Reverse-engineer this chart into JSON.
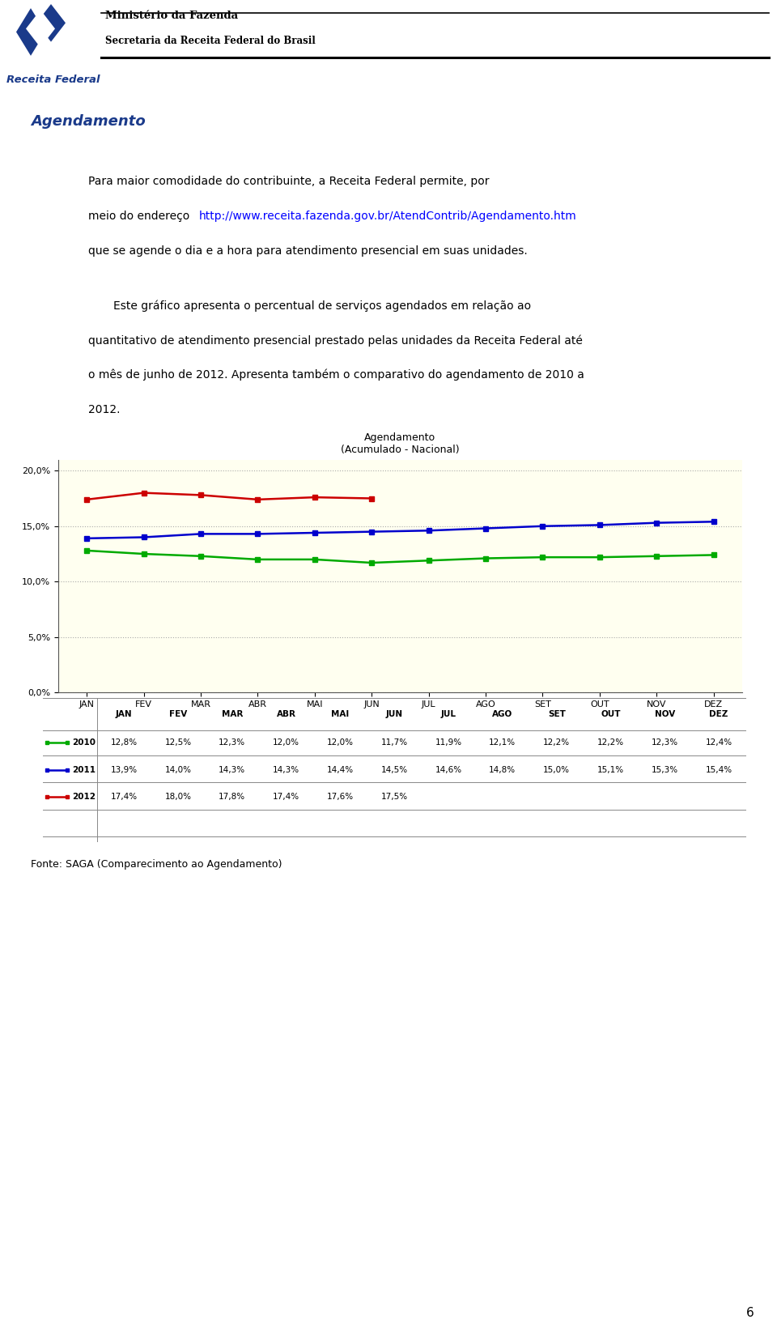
{
  "title_line1": "Agendamento",
  "title_line2": "(Acumulado - Nacional)",
  "months": [
    "JAN",
    "FEV",
    "MAR",
    "ABR",
    "MAI",
    "JUN",
    "JUL",
    "AGO",
    "SET",
    "OUT",
    "NOV",
    "DEZ"
  ],
  "data_2010": [
    12.8,
    12.5,
    12.3,
    12.0,
    12.0,
    11.7,
    11.9,
    12.1,
    12.2,
    12.2,
    12.3,
    12.4
  ],
  "data_2011": [
    13.9,
    14.0,
    14.3,
    14.3,
    14.4,
    14.5,
    14.6,
    14.8,
    15.0,
    15.1,
    15.3,
    15.4
  ],
  "data_2012": [
    17.4,
    18.0,
    17.8,
    17.4,
    17.6,
    17.5,
    null,
    null,
    null,
    null,
    null,
    null
  ],
  "color_2010": "#00aa00",
  "color_2011": "#0000cc",
  "color_2012": "#cc0000",
  "yticks": [
    0.0,
    5.0,
    10.0,
    15.0,
    20.0
  ],
  "ytick_labels": [
    "0,0%",
    "5,0%",
    "10,0%",
    "15,0%",
    "20,0%"
  ],
  "chart_bg": "#fffff0",
  "outer_bg": "#ffffff",
  "table_2010_labels": [
    "12,8%",
    "12,5%",
    "12,3%",
    "12,0%",
    "12,0%",
    "11,7%",
    "11,9%",
    "12,1%",
    "12,2%",
    "12,2%",
    "12,3%",
    "12,4%"
  ],
  "table_2011_labels": [
    "13,9%",
    "14,0%",
    "14,3%",
    "14,3%",
    "14,4%",
    "14,5%",
    "14,6%",
    "14,8%",
    "15,0%",
    "15,1%",
    "15,3%",
    "15,4%"
  ],
  "table_2012_labels": [
    "17,4%",
    "18,0%",
    "17,8%",
    "17,4%",
    "17,6%",
    "17,5%",
    "",
    "",
    "",
    "",
    "",
    ""
  ],
  "section_title": "Agendamento",
  "fonte_text": "Fonte: SAGA (Comparecimento ao Agendamento)",
  "page_number": "6",
  "logo_blue": "#1a3a8a",
  "header_line1": "Ministério da Fazenda",
  "header_line2": "Secretaria da Receita Federal do Brasil"
}
